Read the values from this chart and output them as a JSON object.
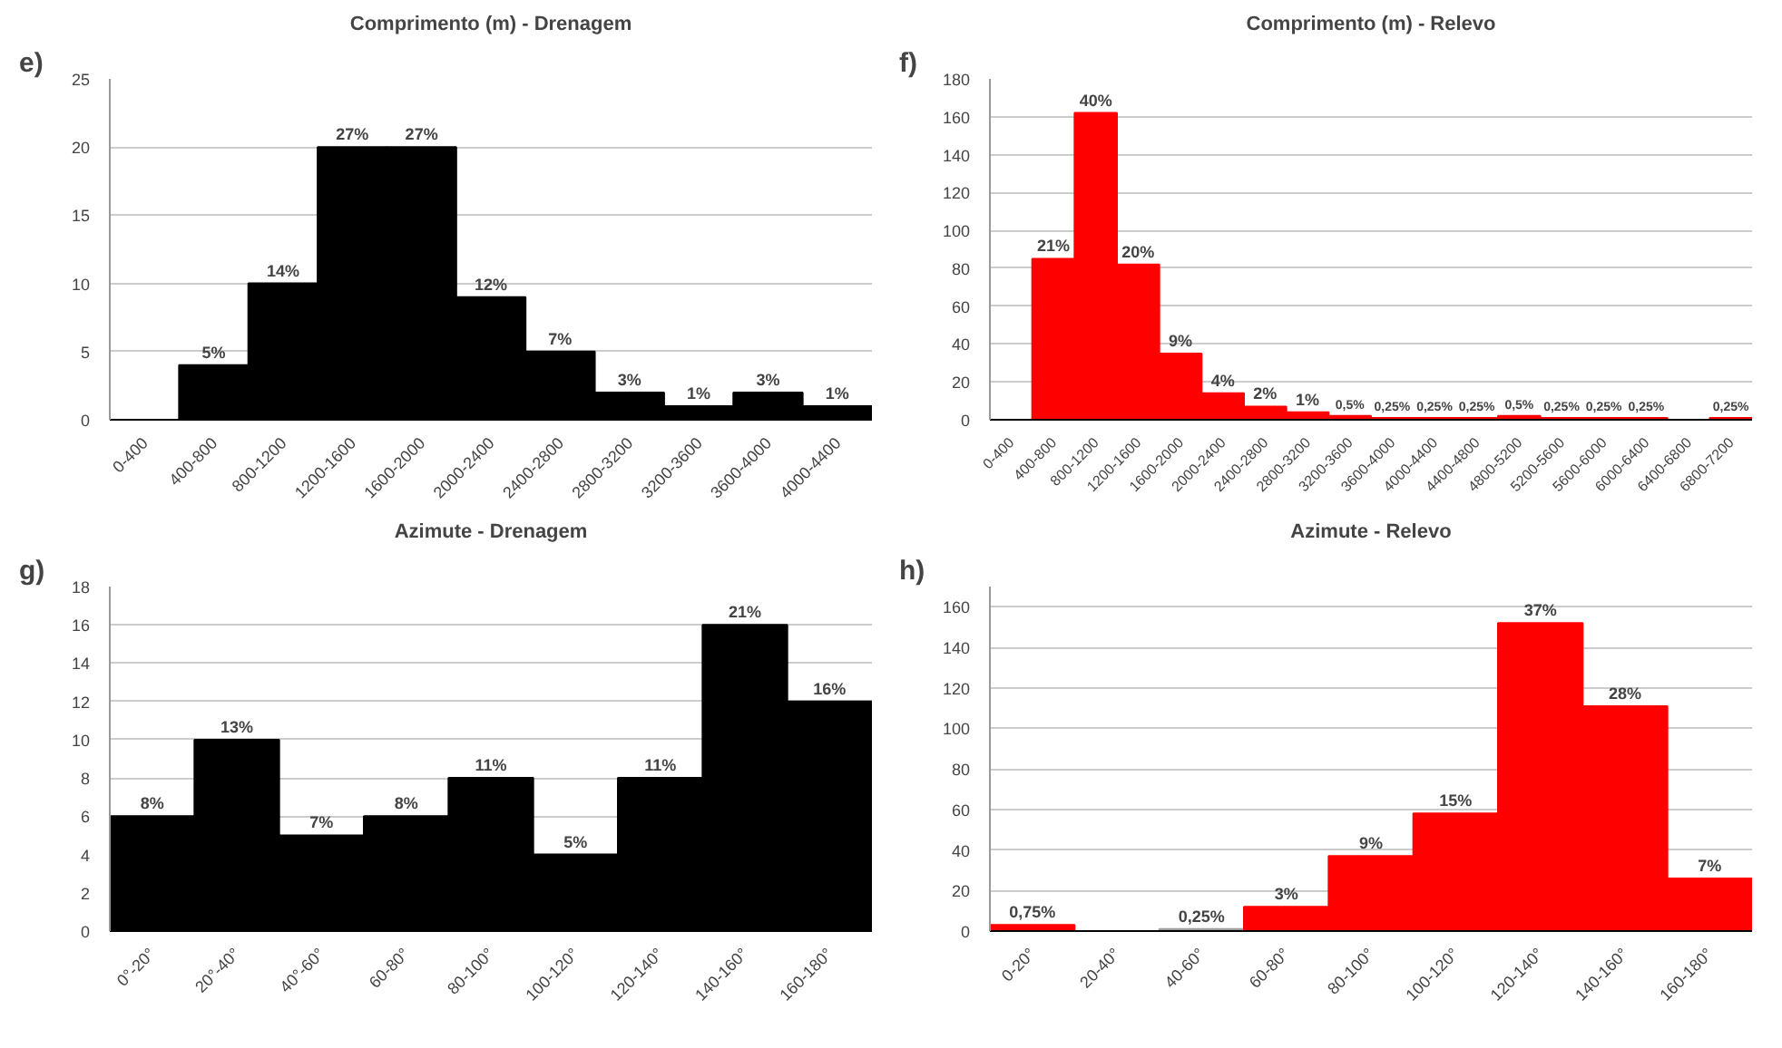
{
  "chart_data": [
    {
      "type": "bar",
      "title": "Comprimento (m) - Drenagem",
      "categories": [
        "0-400",
        "400-800",
        "800-1200",
        "1200-1600",
        "1600-2000",
        "2000-2400",
        "2400-2800",
        "2800-3200",
        "3200-3600",
        "3600-4000",
        "4000-4400"
      ],
      "values": [
        0,
        4,
        10,
        20,
        20,
        9,
        5,
        2,
        1,
        2,
        1
      ],
      "color": "#000000",
      "ylim": [
        0,
        25
      ],
      "yticks": [
        0,
        5,
        10,
        15,
        20,
        25
      ],
      "grid": "y",
      "annotations": [
        "e)",
        {
          "text": "5%",
          "x": "400-800",
          "y": 4
        },
        {
          "text": "14%",
          "x": "800-1200",
          "y": 10
        },
        {
          "text": "27%",
          "x": "1200-1600",
          "y": 20
        },
        {
          "text": "27%",
          "x": "1600-2000",
          "y": 20
        },
        {
          "text": "12%",
          "x": "2000-2400",
          "y": 9
        },
        {
          "text": "7%",
          "x": "2400-2800",
          "y": 5
        },
        {
          "text": "3%",
          "x": "2800-3200",
          "y": 2
        },
        {
          "text": "1%",
          "x": "3200-3600",
          "y": 1
        },
        {
          "text": "3%",
          "x": "3600-4000",
          "y": 2
        },
        {
          "text": "1%",
          "x": "4000-4400",
          "y": 1
        }
      ]
    },
    {
      "type": "bar",
      "title": "Comprimento (m) - Relevo",
      "categories": [
        "0-400",
        "400-800",
        "800-1200",
        "1200-1600",
        "1600-2000",
        "2000-2400",
        "2400-2800",
        "2800-3200",
        "3200-3600",
        "3600-4000",
        "4000-4400",
        "4400-4800",
        "4800-5200",
        "5200-5600",
        "5600-6000",
        "6000-6400",
        "6400-6800",
        "6800-7200"
      ],
      "values": [
        0,
        85,
        162,
        82,
        35,
        14,
        7,
        4,
        2,
        1,
        1,
        1,
        2,
        1,
        1,
        1,
        0,
        1
      ],
      "color": "#ff0000",
      "ylim": [
        0,
        180
      ],
      "yticks": [
        0,
        20,
        40,
        60,
        80,
        100,
        120,
        140,
        160,
        180
      ],
      "grid": "y",
      "annotations": [
        "f)",
        {
          "text": "21%",
          "x": "400-800",
          "y": 85
        },
        {
          "text": "40%",
          "x": "800-1200",
          "y": 162
        },
        {
          "text": "20%",
          "x": "1200-1600",
          "y": 82
        },
        {
          "text": "9%",
          "x": "1600-2000",
          "y": 35
        },
        {
          "text": "4%",
          "x": "2000-2400",
          "y": 14
        },
        {
          "text": "2%",
          "x": "2400-2800",
          "y": 7
        },
        {
          "text": "1%",
          "x": "2800-3200",
          "y": 4
        },
        {
          "text": "0,5%",
          "x": "3200-3600",
          "y": 2
        },
        {
          "text": "0,25%",
          "x": "3600-4000",
          "y": 1
        },
        {
          "text": "0,25%",
          "x": "4000-4400",
          "y": 1
        },
        {
          "text": "0,25%",
          "x": "4400-4800",
          "y": 1
        },
        {
          "text": "0,5%",
          "x": "4800-5200",
          "y": 2
        },
        {
          "text": "0,25%",
          "x": "5200-5600",
          "y": 1
        },
        {
          "text": "0,25%",
          "x": "5600-6000",
          "y": 1
        },
        {
          "text": "0,25%",
          "x": "6000-6400",
          "y": 1
        },
        {
          "text": "0,25%",
          "x": "6800-7200",
          "y": 1
        }
      ]
    },
    {
      "type": "bar",
      "title": "Azimute - Drenagem",
      "categories": [
        "0°-20°",
        "20°-40°",
        "40°-60°",
        "60-80°",
        "80-100°",
        "100-120°",
        "120-140°",
        "140-160°",
        "160-180°"
      ],
      "values": [
        6,
        10,
        5,
        6,
        8,
        4,
        8,
        16,
        12
      ],
      "color": "#000000",
      "ylim": [
        0,
        18
      ],
      "yticks": [
        0,
        2,
        4,
        6,
        8,
        10,
        12,
        14,
        16,
        18
      ],
      "grid": "y",
      "annotations": [
        "g)",
        {
          "text": "8%",
          "x": "0°-20°",
          "y": 6
        },
        {
          "text": "13%",
          "x": "20°-40°",
          "y": 10
        },
        {
          "text": "7%",
          "x": "40°-60°",
          "y": 5
        },
        {
          "text": "8%",
          "x": "60-80°",
          "y": 6
        },
        {
          "text": "11%",
          "x": "80-100°",
          "y": 8
        },
        {
          "text": "5%",
          "x": "100-120°",
          "y": 4
        },
        {
          "text": "11%",
          "x": "120-140°",
          "y": 8
        },
        {
          "text": "21%",
          "x": "140-160°",
          "y": 16
        },
        {
          "text": "16%",
          "x": "160-180°",
          "y": 12
        }
      ]
    },
    {
      "type": "bar",
      "title": "Azimute - Relevo",
      "categories": [
        "0-20°",
        "20-40°",
        "40-60°",
        "60-80°",
        "80-100°",
        "100-120°",
        "120-140°",
        "140-160°",
        "160-180°"
      ],
      "values": [
        3,
        0,
        1,
        12,
        37,
        58,
        152,
        111,
        26
      ],
      "colors": [
        "#ff0000",
        "#ff0000",
        "#a0a0a0",
        "#ff0000",
        "#ff0000",
        "#ff0000",
        "#ff0000",
        "#ff0000",
        "#ff0000"
      ],
      "ylim": [
        0,
        170
      ],
      "yticks": [
        0,
        20,
        40,
        60,
        80,
        100,
        120,
        140,
        160
      ],
      "grid": "y",
      "annotations": [
        "h)",
        {
          "text": "0,75%",
          "x": "0-20°",
          "y": 3
        },
        {
          "text": "0,25%",
          "x": "40-60°",
          "y": 1
        },
        {
          "text": "3%",
          "x": "60-80°",
          "y": 12
        },
        {
          "text": "9%",
          "x": "80-100°",
          "y": 37
        },
        {
          "text": "15%",
          "x": "100-120°",
          "y": 58
        },
        {
          "text": "37%",
          "x": "120-140°",
          "y": 152
        },
        {
          "text": "28%",
          "x": "140-160°",
          "y": 111
        },
        {
          "text": "7%",
          "x": "160-180°",
          "y": 26
        }
      ]
    }
  ]
}
